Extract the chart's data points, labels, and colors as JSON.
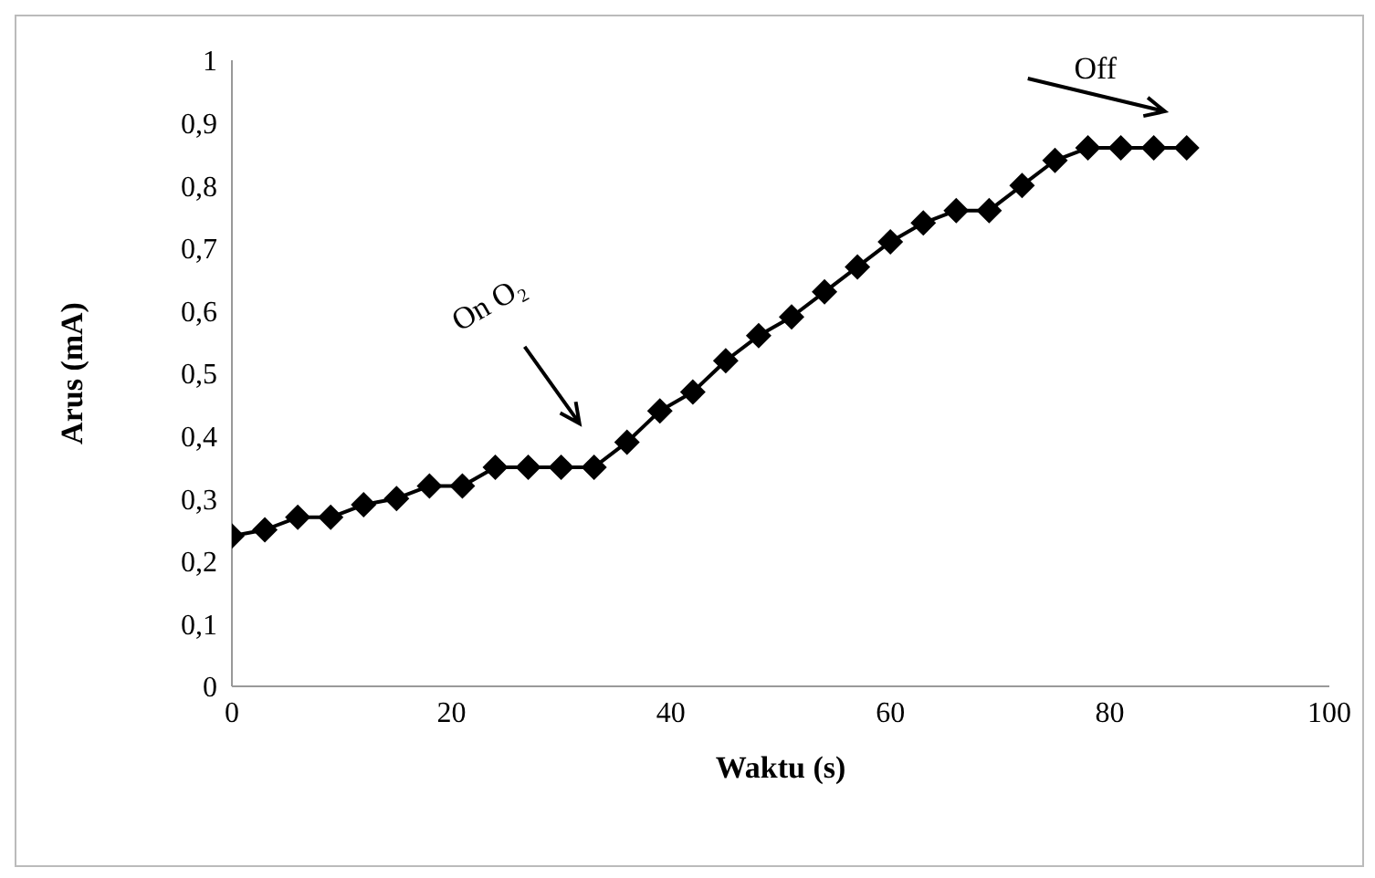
{
  "chart_data": {
    "type": "line",
    "xlabel": "Waktu (s)",
    "ylabel": "Arus (mA)",
    "x": [
      0,
      3,
      6,
      9,
      12,
      15,
      18,
      21,
      24,
      27,
      30,
      33,
      36,
      39,
      42,
      45,
      48,
      51,
      54,
      57,
      60,
      63,
      66,
      69,
      72,
      75,
      78,
      81,
      84,
      87
    ],
    "series": [
      {
        "color": "#000000",
        "values": [
          0.24,
          0.25,
          0.27,
          0.27,
          0.29,
          0.3,
          0.32,
          0.32,
          0.35,
          0.35,
          0.35,
          0.35,
          0.39,
          0.44,
          0.47,
          0.52,
          0.56,
          0.59,
          0.63,
          0.67,
          0.71,
          0.74,
          0.76,
          0.76,
          0.8,
          0.84,
          0.86,
          0.86,
          0.86,
          0.86
        ]
      }
    ],
    "xlim": [
      0,
      100
    ],
    "xticks": [
      0,
      20,
      40,
      60,
      80,
      100
    ],
    "ylim": [
      0,
      1
    ],
    "yticks": [
      0,
      {
        "value": 0.1,
        "label": "0,1"
      },
      {
        "value": 0.2,
        "label": "0,2"
      },
      {
        "value": 0.3,
        "label": "0,3"
      },
      {
        "value": 0.4,
        "label": "0,4"
      },
      {
        "value": 0.5,
        "label": "0,5"
      },
      {
        "value": 0.6,
        "label": "0,6"
      },
      {
        "value": 0.7,
        "label": "0,7"
      },
      {
        "value": 0.8,
        "label": "0,8"
      },
      {
        "value": 0.9,
        "label": "0,9"
      },
      1
    ],
    "marker": "diamond",
    "grid": false,
    "legend": false,
    "annotations": [
      "On O₂",
      "Off"
    ]
  }
}
